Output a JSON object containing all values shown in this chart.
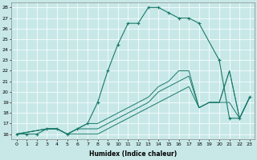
{
  "bg_color": "#c8e8e8",
  "line_color": "#1a7a6a",
  "xlabel": "Humidex (Indice chaleur)",
  "xlim": [
    -0.5,
    23.5
  ],
  "ylim": [
    15.5,
    28.5
  ],
  "xticks": [
    0,
    1,
    2,
    3,
    4,
    5,
    6,
    7,
    8,
    9,
    10,
    11,
    12,
    13,
    14,
    15,
    16,
    17,
    18,
    19,
    20,
    21,
    22,
    23
  ],
  "yticks": [
    16,
    17,
    18,
    19,
    20,
    21,
    22,
    23,
    24,
    25,
    26,
    27,
    28
  ],
  "main_x": [
    0,
    1,
    2,
    3,
    4,
    5,
    6,
    7,
    8,
    9,
    10,
    11,
    12,
    13,
    14,
    15,
    16,
    17,
    18,
    20,
    21,
    22,
    23
  ],
  "main_y": [
    16,
    16,
    16,
    16.5,
    16.5,
    16,
    16.5,
    17,
    19,
    22,
    24.5,
    26.5,
    26.5,
    28,
    28,
    27.5,
    27,
    27,
    26.5,
    23,
    17.5,
    17.5,
    19.5
  ],
  "line_top_x": [
    0,
    3,
    4,
    5,
    6,
    7,
    8,
    9,
    10,
    11,
    12,
    13,
    14,
    15,
    16,
    17,
    18,
    19,
    20,
    21,
    22,
    23
  ],
  "line_top_y": [
    16,
    16.5,
    16.5,
    16,
    16.5,
    17,
    17,
    17.5,
    18,
    18.5,
    19,
    19.5,
    20.5,
    21,
    22,
    22,
    18.5,
    19,
    19,
    22,
    17.5,
    19.5
  ],
  "line_mid_x": [
    0,
    3,
    4,
    5,
    6,
    7,
    8,
    9,
    10,
    11,
    12,
    13,
    14,
    15,
    16,
    17,
    18,
    19,
    20,
    21,
    22,
    23
  ],
  "line_mid_y": [
    16,
    16.5,
    16.5,
    16,
    16.5,
    16.5,
    16.5,
    17,
    17.5,
    18,
    18.5,
    19,
    20,
    20.5,
    21,
    21.5,
    18.5,
    19,
    19,
    22,
    17.5,
    19.5
  ],
  "line_bot_x": [
    0,
    3,
    4,
    5,
    6,
    7,
    8,
    9,
    10,
    11,
    12,
    13,
    14,
    15,
    16,
    17,
    18,
    19,
    20,
    21,
    22,
    23
  ],
  "line_bot_y": [
    16,
    16.5,
    16.5,
    16,
    16,
    16,
    16,
    16.5,
    17,
    17.5,
    18,
    18.5,
    19,
    19.5,
    20,
    20.5,
    18.5,
    19,
    19,
    19,
    17.5,
    19.5
  ]
}
